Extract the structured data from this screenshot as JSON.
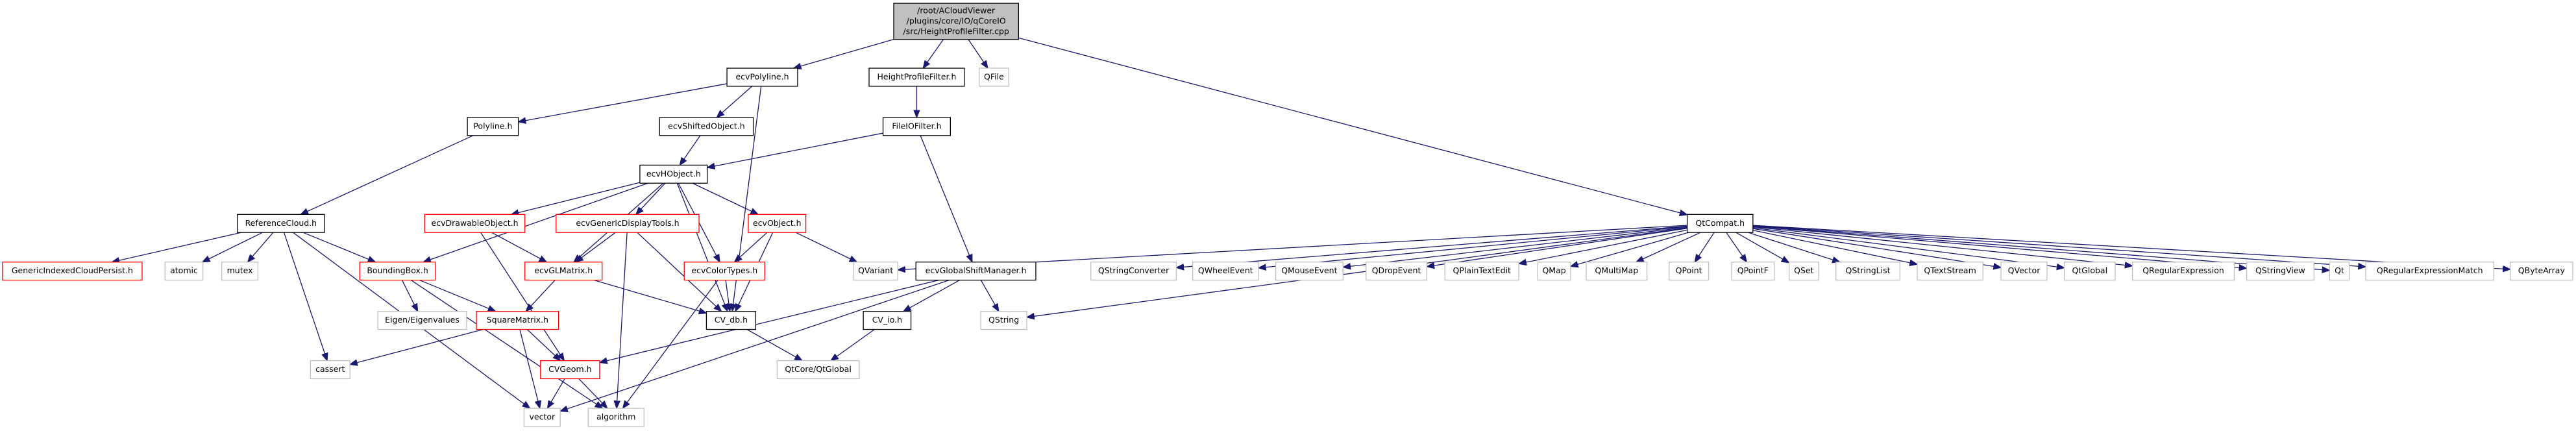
{
  "nodes": [
    {
      "label": [
        "/root/ACloudViewer",
        "/plugins/core/IO/qCoreIO",
        "/src/HeightProfileFilter.cpp"
      ]
    },
    {
      "label": "ecvPolyline.h"
    },
    {
      "label": "HeightProfileFilter.h"
    },
    {
      "label": "QFile"
    },
    {
      "label": "QtCompat.h"
    },
    {
      "label": "Polyline.h"
    },
    {
      "label": "ecvShiftedObject.h"
    },
    {
      "label": "FileIOFilter.h"
    },
    {
      "label": "ecvHObject.h"
    },
    {
      "label": "ReferenceCloud.h"
    },
    {
      "label": "ecvDrawableObject.h"
    },
    {
      "label": "ecvGenericDisplayTools.h"
    },
    {
      "label": "ecvObject.h"
    },
    {
      "label": "GenericIndexedCloudPersist.h"
    },
    {
      "label": "atomic"
    },
    {
      "label": "mutex"
    },
    {
      "label": "BoundingBox.h"
    },
    {
      "label": "ecvGLMatrix.h"
    },
    {
      "label": "ecvColorTypes.h"
    },
    {
      "label": "QVariant"
    },
    {
      "label": "ecvGlobalShiftManager.h"
    },
    {
      "label": "QStringConverter"
    },
    {
      "label": "QWheelEvent"
    },
    {
      "label": "QMouseEvent"
    },
    {
      "label": "QDropEvent"
    },
    {
      "label": "QPlainTextEdit"
    },
    {
      "label": "QMap"
    },
    {
      "label": "QMultiMap"
    },
    {
      "label": "QPoint"
    },
    {
      "label": "QPointF"
    },
    {
      "label": "QSet"
    },
    {
      "label": "QStringList"
    },
    {
      "label": "QTextStream"
    },
    {
      "label": "QVector"
    },
    {
      "label": "QtGlobal"
    },
    {
      "label": "QRegularExpression"
    },
    {
      "label": "QStringView"
    },
    {
      "label": "Qt"
    },
    {
      "label": "QRegularExpressionMatch"
    },
    {
      "label": "QByteArray"
    },
    {
      "label": "Eigen/Eigenvalues"
    },
    {
      "label": "SquareMatrix.h"
    },
    {
      "label": "CV_db.h"
    },
    {
      "label": "CV_io.h"
    },
    {
      "label": "QString"
    },
    {
      "label": "cassert"
    },
    {
      "label": "CVGeom.h"
    },
    {
      "label": "QtCore/QtGlobal"
    },
    {
      "label": "vector"
    },
    {
      "label": "algorithm"
    }
  ]
}
